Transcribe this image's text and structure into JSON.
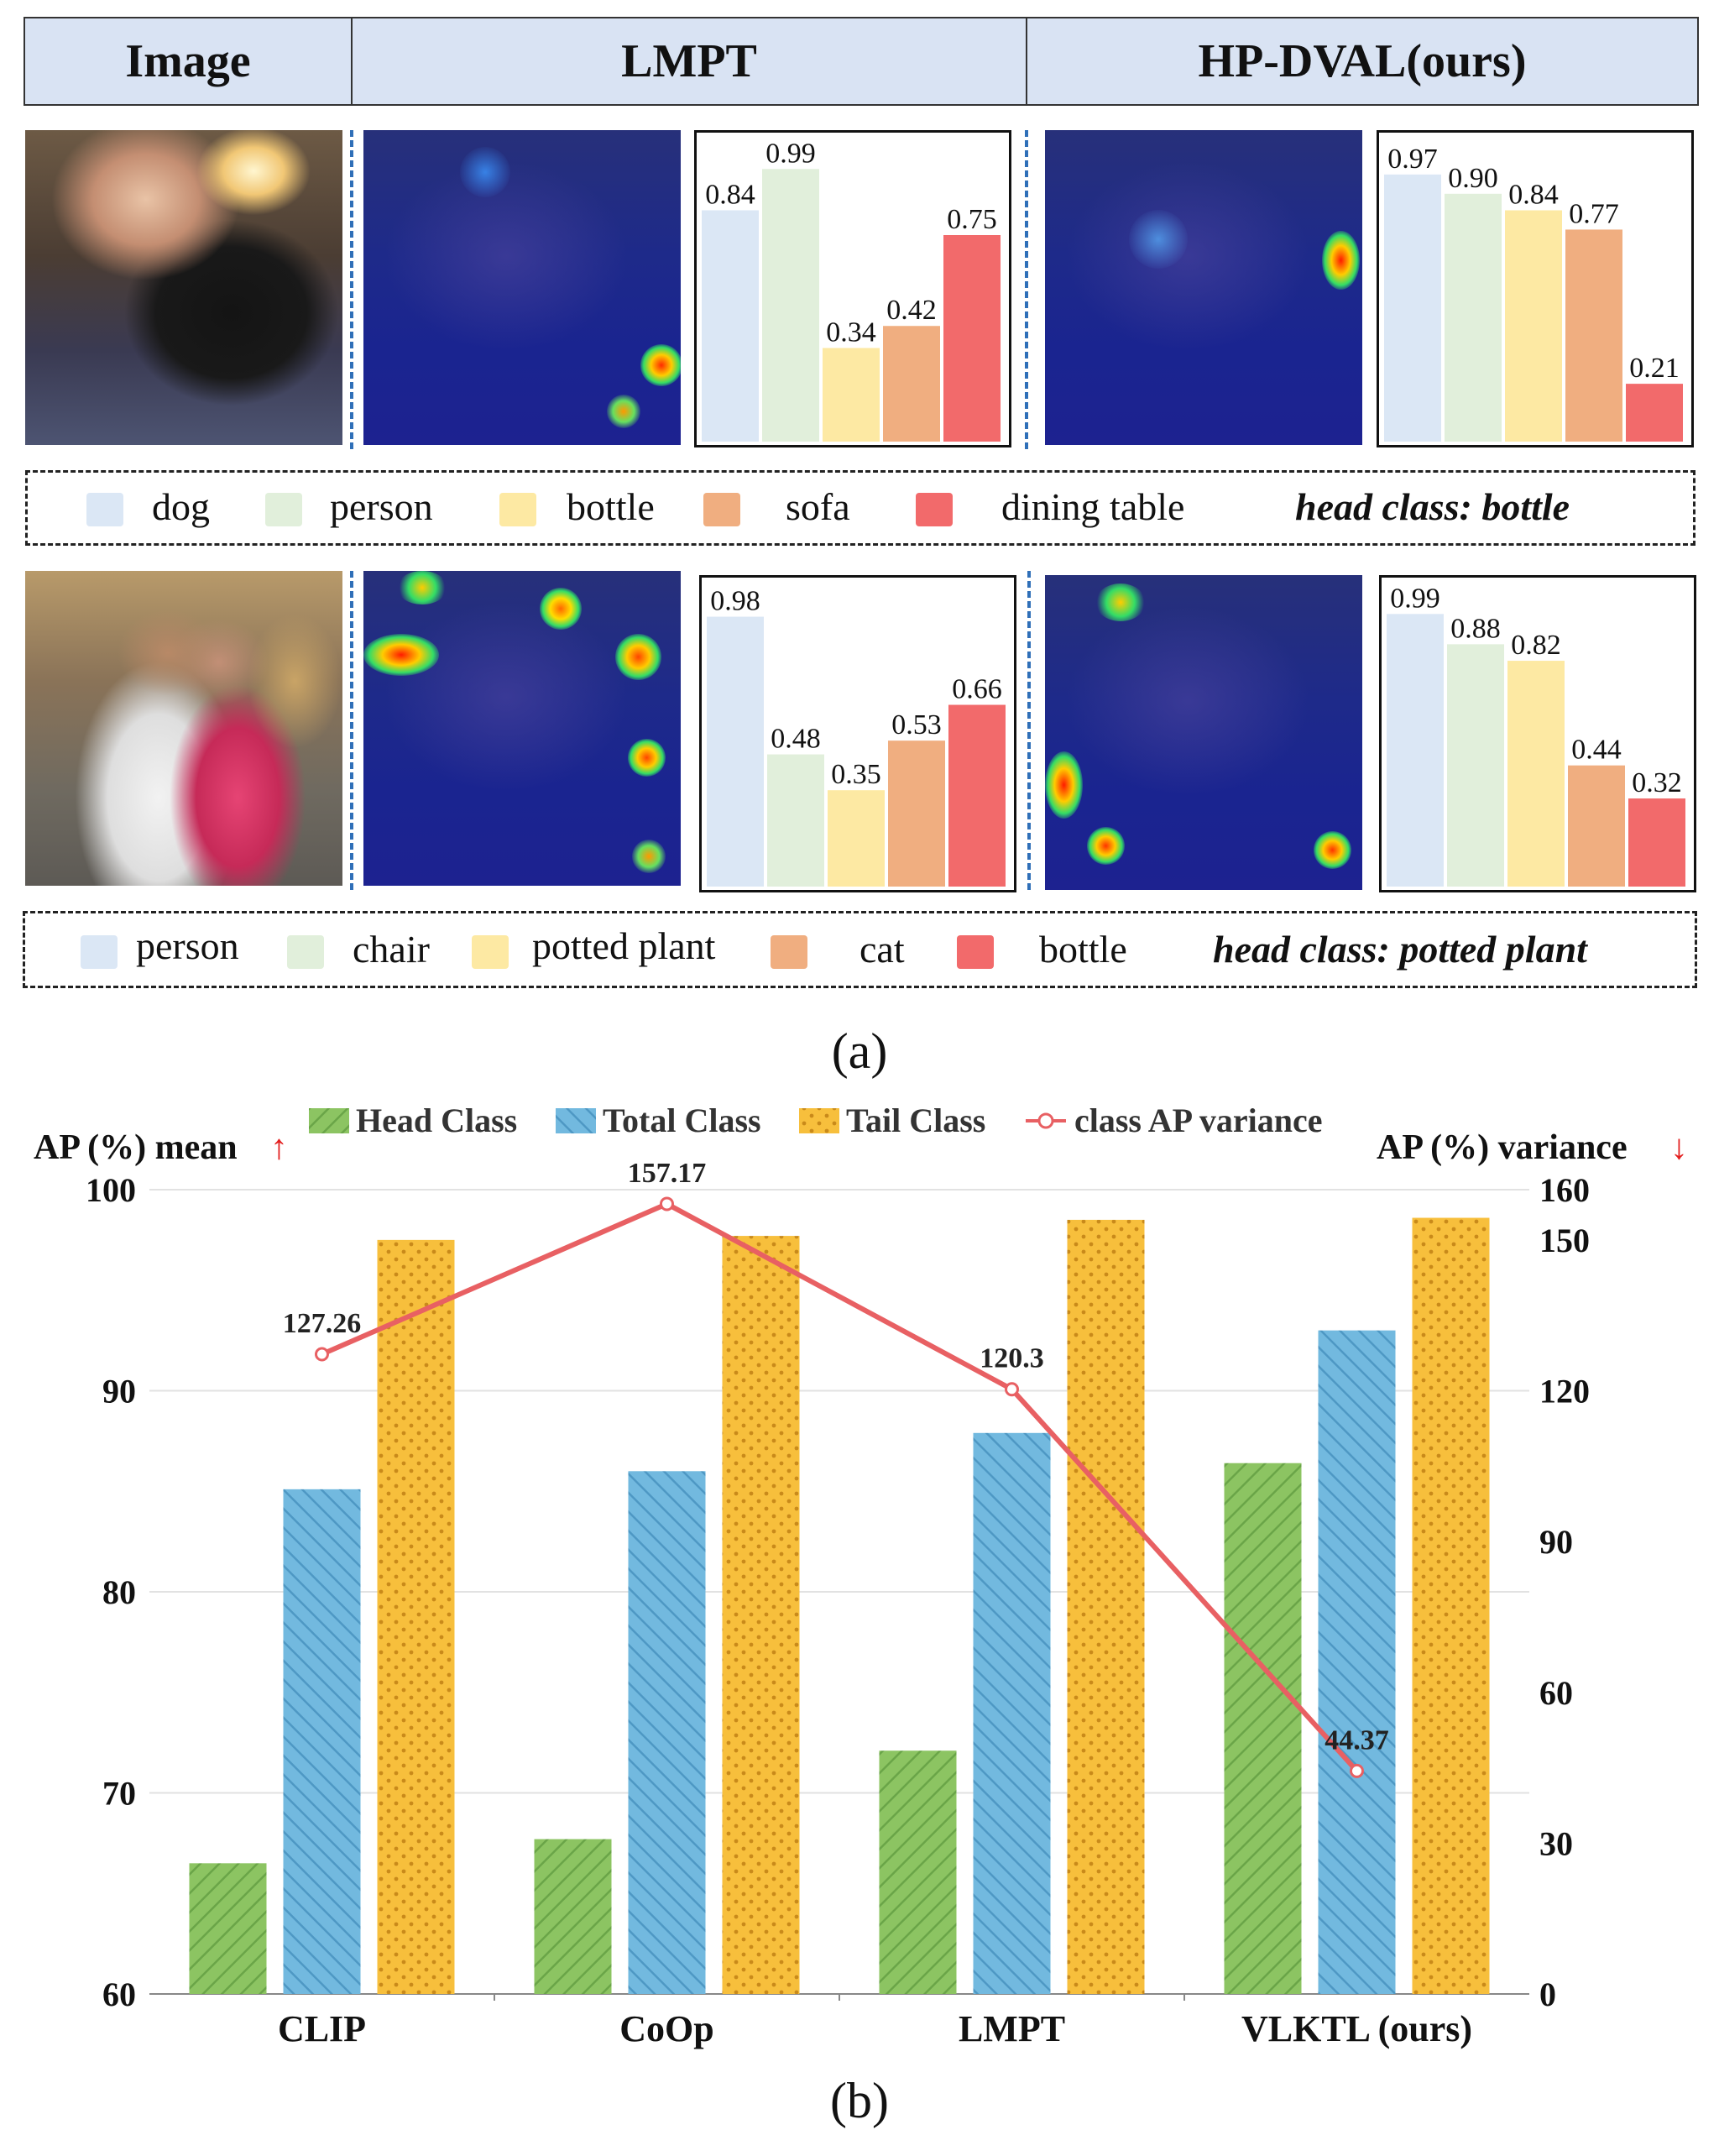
{
  "header": {
    "col1": "Image",
    "col2": "LMPT",
    "col3": "HP-DVAL(ours)"
  },
  "row1": {
    "lmpt_values": [
      "0.84",
      "0.99",
      "0.34",
      "0.42",
      "0.75"
    ],
    "hp_values": [
      "0.97",
      "0.90",
      "0.84",
      "0.77",
      "0.21"
    ],
    "lmpt_nums": [
      0.84,
      0.99,
      0.34,
      0.42,
      0.75
    ],
    "hp_nums": [
      0.97,
      0.9,
      0.84,
      0.77,
      0.21
    ],
    "legend": [
      "dog",
      "person",
      "bottle",
      "sofa",
      "dining table"
    ],
    "head_class": "head class:  bottle"
  },
  "row2": {
    "lmpt_values": [
      "0.98",
      "0.48",
      "0.35",
      "0.53",
      "0.66"
    ],
    "hp_values": [
      "0.99",
      "0.88",
      "0.82",
      "0.44",
      "0.32"
    ],
    "lmpt_nums": [
      0.98,
      0.48,
      0.35,
      0.53,
      0.66
    ],
    "hp_nums": [
      0.99,
      0.88,
      0.82,
      0.44,
      0.32
    ],
    "legend": [
      "person",
      "chair",
      "potted plant",
      "cat",
      "bottle"
    ],
    "head_class": "head class: potted plant"
  },
  "bar_colors": [
    "#dbe7f5",
    "#e1efdb",
    "#fde9a3",
    "#f0ae80",
    "#f26a6b"
  ],
  "caption_a": "(a)",
  "caption_b": "(b)",
  "chart_data": {
    "type": "bar",
    "categories": [
      "CLIP",
      "CoOp",
      "LMPT",
      "VLKTL (ours)"
    ],
    "series": [
      {
        "name": "Head Class",
        "values": [
          66.5,
          67.7,
          72.1,
          86.4
        ],
        "color": "#8cc462"
      },
      {
        "name": "Total Class",
        "values": [
          85.1,
          86.0,
          87.9,
          93.0
        ],
        "color": "#72b9df"
      },
      {
        "name": "Tail Class",
        "values": [
          97.5,
          97.7,
          98.5,
          98.6
        ],
        "color": "#f7bf3c"
      }
    ],
    "line": {
      "name": "class AP variance",
      "values": [
        127.26,
        157.17,
        120.3,
        44.37
      ],
      "labels": [
        "127.26",
        "157.17",
        "120.3",
        "44.37"
      ],
      "color": "#e86063"
    },
    "ylabel": "AP (%) mean",
    "y2label": "AP (%) variance",
    "ylim": [
      60,
      100
    ],
    "y2lim": [
      0,
      160
    ],
    "yticks": [
      "60",
      "70",
      "80",
      "90",
      "100"
    ],
    "y2ticks": [
      "0",
      "30",
      "60",
      "90",
      "120",
      "150",
      "160"
    ],
    "legend_position": "top"
  }
}
